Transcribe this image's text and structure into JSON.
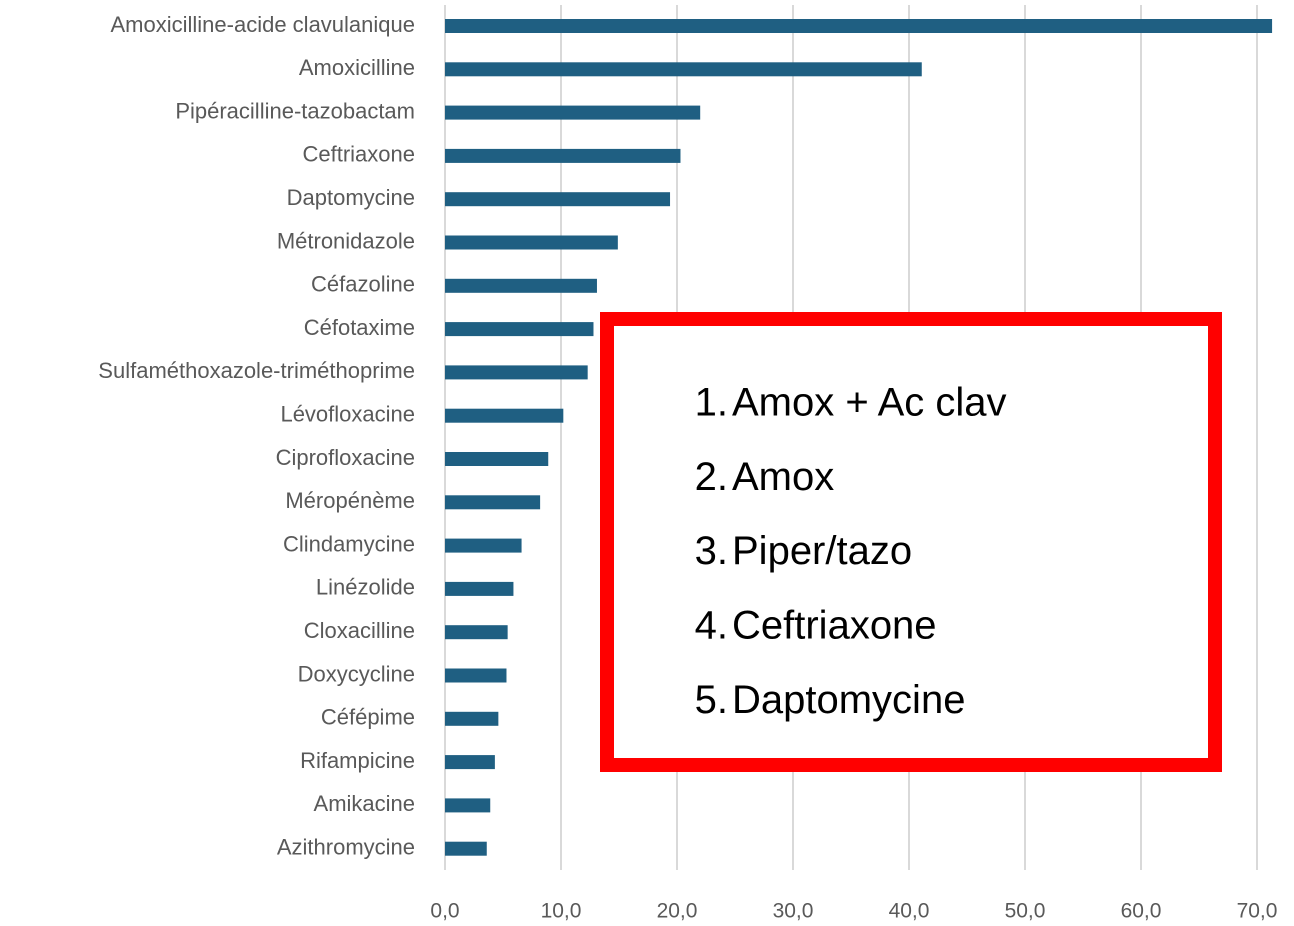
{
  "chart_data": {
    "type": "barh",
    "categories": [
      "Amoxicilline-acide clavulanique",
      "Amoxicilline",
      "Pipéracilline-tazobactam",
      "Ceftriaxone",
      "Daptomycine",
      "Métronidazole",
      "Céfazoline",
      "Céfotaxime",
      "Sulfaméthoxazole-triméthoprime",
      "Lévofloxacine",
      "Ciprofloxacine",
      "Méropénème",
      "Clindamycine",
      "Linézolide",
      "Cloxacilline",
      "Doxycycline",
      "Céfépime",
      "Rifampicine",
      "Amikacine",
      "Azithromycine"
    ],
    "values": [
      71.3,
      41.1,
      22.0,
      20.3,
      19.4,
      14.9,
      13.1,
      12.8,
      12.3,
      10.2,
      8.9,
      8.2,
      6.6,
      5.9,
      5.4,
      5.3,
      4.6,
      4.3,
      3.9,
      3.6
    ],
    "color": "#1f5f82",
    "xlim": [
      0,
      70
    ],
    "xticks": [
      {
        "value": 0,
        "label": "0,0"
      },
      {
        "value": 10,
        "label": "10,0"
      },
      {
        "value": 20,
        "label": "20,0"
      },
      {
        "value": 30,
        "label": "30,0"
      },
      {
        "value": 40,
        "label": "40,0"
      },
      {
        "value": 50,
        "label": "50,0"
      },
      {
        "value": 60,
        "label": "60,0"
      },
      {
        "value": 70,
        "label": "70,0"
      }
    ],
    "grid": true,
    "annotation": {
      "color": "#ff0000",
      "items": [
        {
          "number": "1.",
          "text": "Amox + Ac clav"
        },
        {
          "number": "2.",
          "text": "Amox"
        },
        {
          "number": "3.",
          "text": "Piper/tazo"
        },
        {
          "number": "4.",
          "text": "Ceftriaxone"
        },
        {
          "number": "5.",
          "text": "Daptomycine"
        }
      ]
    }
  }
}
